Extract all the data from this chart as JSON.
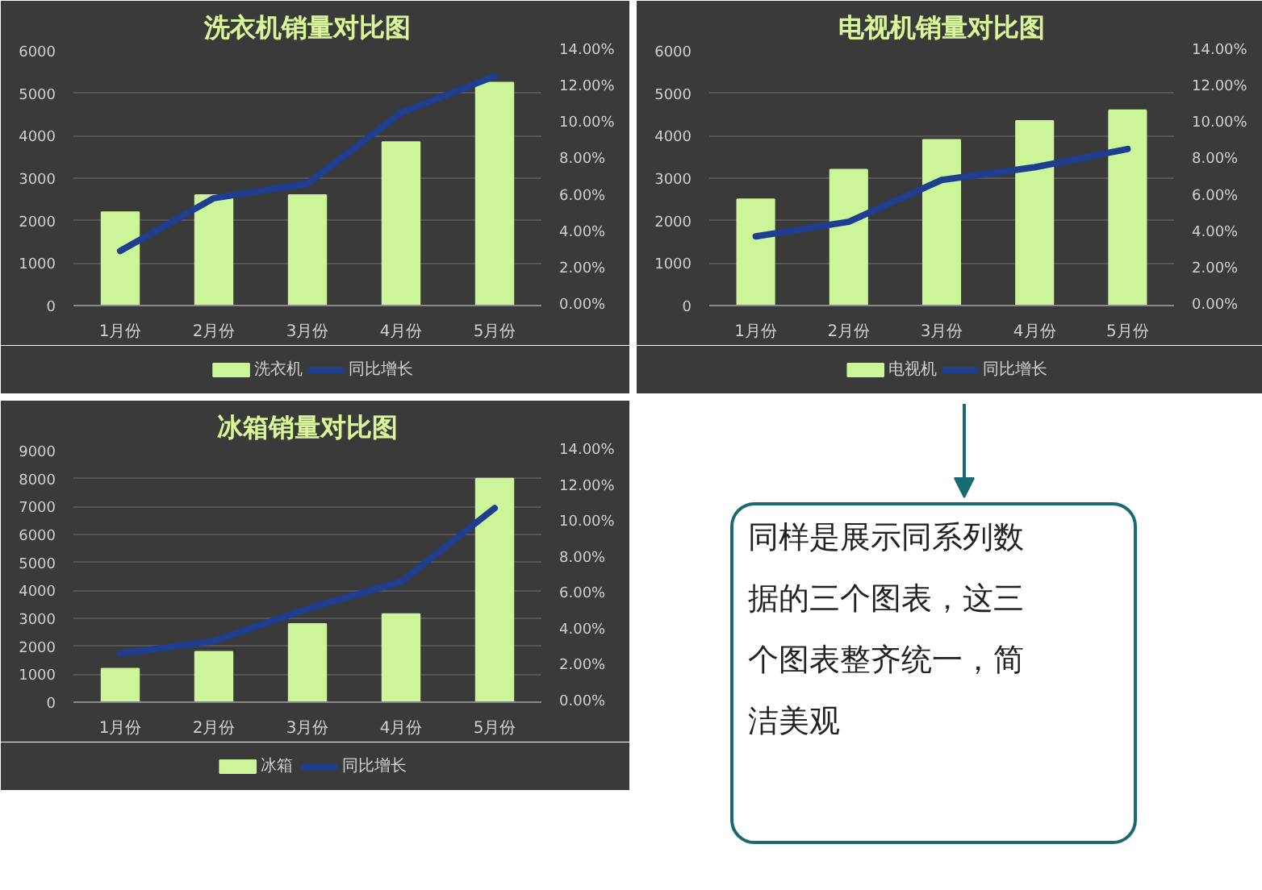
{
  "chart_data": [
    {
      "type": "bar",
      "title": "洗衣机销量对比图",
      "categories": [
        "1月份",
        "2月份",
        "3月份",
        "4月份",
        "5月份"
      ],
      "series": [
        {
          "name": "洗衣机",
          "color": "#ccf59a",
          "values": [
            2200,
            2600,
            2600,
            3850,
            5250
          ]
        },
        {
          "name": "同比增长",
          "type": "line",
          "axis": "y2",
          "color": "#1f3e8f",
          "values": [
            3.0,
            5.9,
            6.7,
            10.6,
            12.6
          ]
        }
      ],
      "ylim": [
        0,
        6000
      ],
      "yticks": [
        0,
        1000,
        2000,
        3000,
        4000,
        5000,
        6000
      ],
      "y2lim": [
        0,
        14
      ],
      "y2ticks": [
        {
          "value": 0,
          "label": "0.00%"
        },
        {
          "value": 2,
          "label": "2.00%"
        },
        {
          "value": 4,
          "label": "4.00%"
        },
        {
          "value": 6,
          "label": "6.00%"
        },
        {
          "value": 8,
          "label": "8.00%"
        },
        {
          "value": 10,
          "label": "10.00%"
        },
        {
          "value": 12,
          "label": "12.00%"
        },
        {
          "value": 14,
          "label": "14.00%"
        }
      ],
      "grid": "y",
      "legend": "bottom",
      "line_style": "solid"
    },
    {
      "type": "bar",
      "title": "电视机销量对比图",
      "categories": [
        "1月份",
        "2月份",
        "3月份",
        "4月份",
        "5月份"
      ],
      "series": [
        {
          "name": "电视机",
          "color": "#ccf59a",
          "values": [
            2500,
            3200,
            3900,
            4350,
            4600
          ]
        },
        {
          "name": "同比增长",
          "type": "line",
          "axis": "y2",
          "color": "#1f3e8f",
          "values": [
            3.8,
            4.6,
            6.9,
            7.6,
            8.6
          ]
        }
      ],
      "ylim": [
        0,
        6000
      ],
      "yticks": [
        0,
        1000,
        2000,
        3000,
        4000,
        5000,
        6000
      ],
      "y2lim": [
        0,
        14
      ],
      "y2ticks": [
        {
          "value": 0,
          "label": "0.00%"
        },
        {
          "value": 2,
          "label": "2.00%"
        },
        {
          "value": 4,
          "label": "4.00%"
        },
        {
          "value": 6,
          "label": "6.00%"
        },
        {
          "value": 8,
          "label": "8.00%"
        },
        {
          "value": 10,
          "label": "10.00%"
        },
        {
          "value": 12,
          "label": "12.00%"
        },
        {
          "value": 14,
          "label": "14.00%"
        }
      ],
      "grid": "y",
      "legend": "bottom",
      "line_style": "solid"
    },
    {
      "type": "bar",
      "title": "冰箱销量对比图",
      "categories": [
        "1月份",
        "2月份",
        "3月份",
        "4月份",
        "5月份"
      ],
      "series": [
        {
          "name": "冰箱",
          "color": "#ccf59a",
          "values": [
            1200,
            1800,
            2800,
            3150,
            8000
          ]
        },
        {
          "name": "同比增长",
          "type": "line",
          "axis": "y2",
          "color": "#1f3e8f",
          "values": [
            2.7,
            3.4,
            5.2,
            6.7,
            10.8
          ]
        }
      ],
      "ylim": [
        0,
        9000
      ],
      "yticks": [
        0,
        1000,
        2000,
        3000,
        4000,
        5000,
        6000,
        7000,
        8000,
        9000
      ],
      "y2lim": [
        0,
        14
      ],
      "y2ticks": [
        {
          "value": 0,
          "label": "0.00%"
        },
        {
          "value": 2,
          "label": "2.00%"
        },
        {
          "value": 4,
          "label": "4.00%"
        },
        {
          "value": 6,
          "label": "6.00%"
        },
        {
          "value": 8,
          "label": "8.00%"
        },
        {
          "value": 10,
          "label": "10.00%"
        },
        {
          "value": 12,
          "label": "12.00%"
        },
        {
          "value": 14,
          "label": "14.00%"
        }
      ],
      "grid": "y",
      "legend": "bottom",
      "line_style": "solid"
    },
    {
      "type": "other",
      "annotations": [
        "同样是展示同系列数据的三个图表，这三个图表整齐统一，简洁美观"
      ]
    }
  ]
}
